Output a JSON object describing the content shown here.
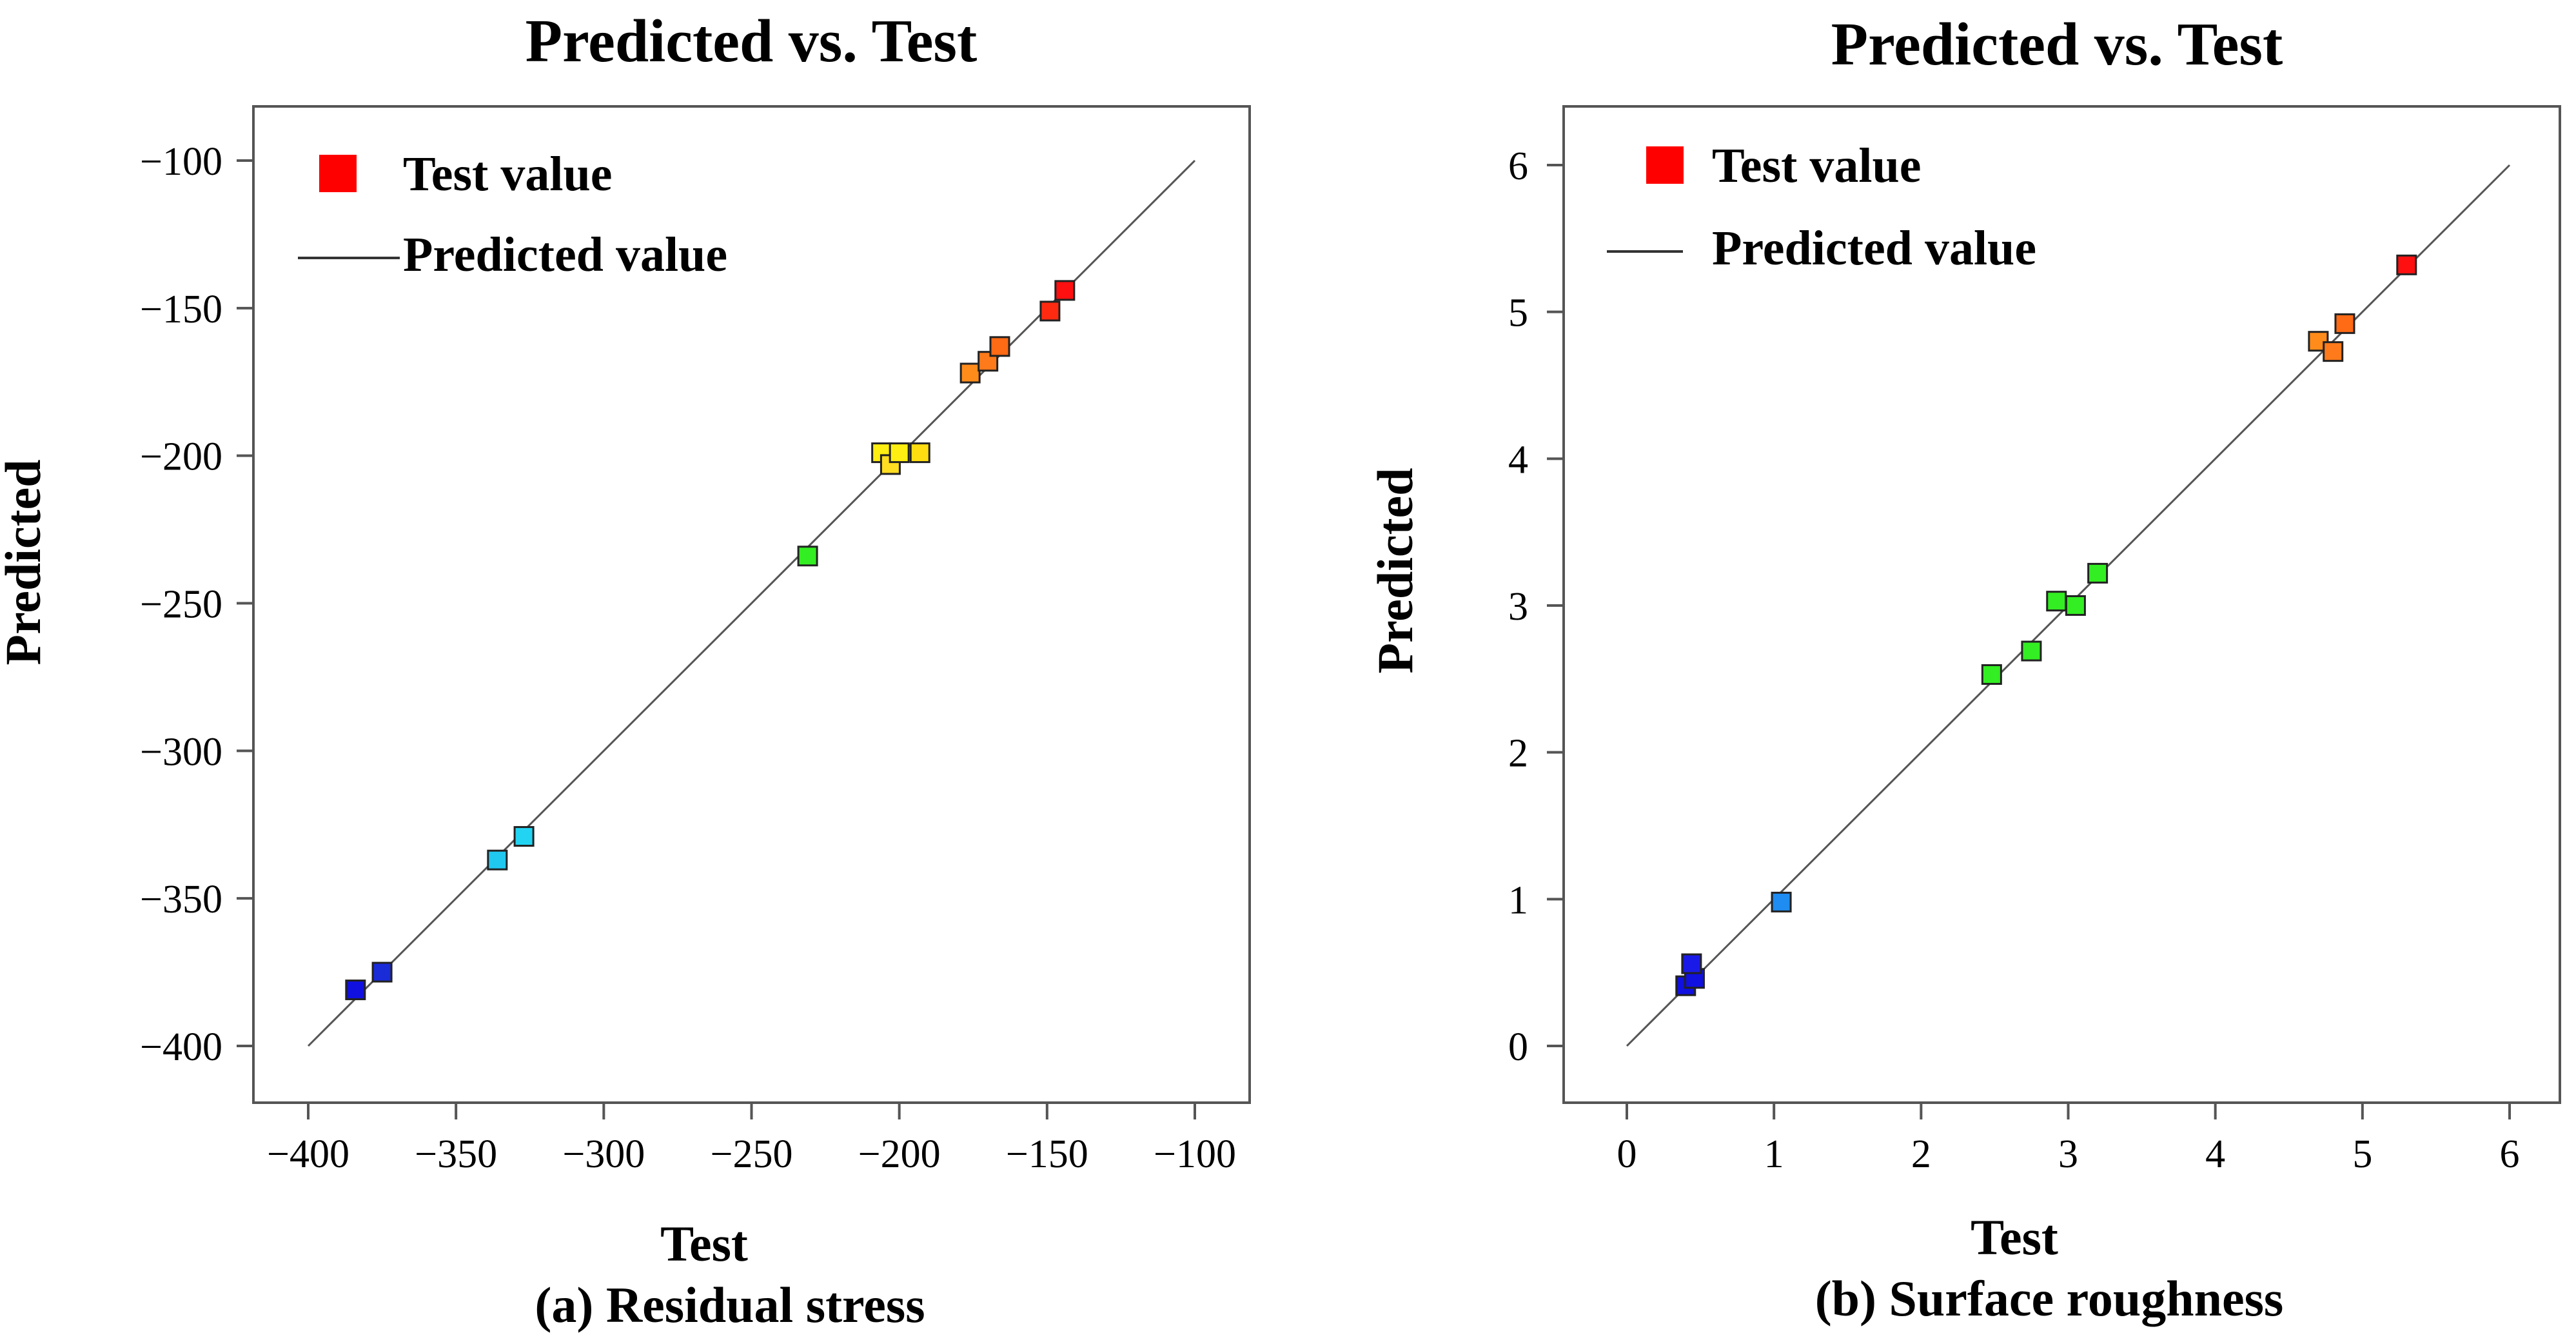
{
  "chart_data": [
    {
      "type": "scatter",
      "title": "Predicted vs. Test",
      "xlabel": "Test",
      "ylabel": "Predicted",
      "caption": "(a) Residual stress",
      "xlim": [
        -400,
        -100
      ],
      "ylim": [
        -400,
        -100
      ],
      "xticks": [
        -400,
        -350,
        -300,
        -250,
        -200,
        -150,
        -100
      ],
      "yticks": [
        -100,
        -150,
        -200,
        -250,
        -300,
        -350,
        -400
      ],
      "xtick_labels": [
        "−400",
        "−350",
        "−300",
        "−250",
        "−200",
        "−150",
        "−100"
      ],
      "ytick_labels": [
        "−100",
        "−150",
        "−200",
        "−250",
        "−300",
        "−350",
        "−400"
      ],
      "grid": false,
      "legend": {
        "placement": "top-left",
        "items": [
          {
            "label": "Test value",
            "kind": "marker",
            "color": "#ff0000"
          },
          {
            "label": "Predicted value",
            "kind": "line",
            "color": "#333333"
          }
        ]
      },
      "reference_line": {
        "x": [
          -400,
          -100
        ],
        "y": [
          -400,
          -100
        ]
      },
      "points": [
        {
          "x": -384,
          "y": -381,
          "color": "#1010e0"
        },
        {
          "x": -375,
          "y": -375,
          "color": "#1a2bd8"
        },
        {
          "x": -336,
          "y": -337,
          "color": "#20c8f0"
        },
        {
          "x": -327,
          "y": -329,
          "color": "#22d4f2"
        },
        {
          "x": -231,
          "y": -234,
          "color": "#33ee22"
        },
        {
          "x": -206,
          "y": -199,
          "color": "#ffee11"
        },
        {
          "x": -203,
          "y": -203,
          "color": "#ffdd22"
        },
        {
          "x": -200,
          "y": -199,
          "color": "#ffee11"
        },
        {
          "x": -193,
          "y": -199,
          "color": "#ffdd11"
        },
        {
          "x": -176,
          "y": -172,
          "color": "#ff8c1a"
        },
        {
          "x": -170,
          "y": -168,
          "color": "#ff7a1a"
        },
        {
          "x": -166,
          "y": -163,
          "color": "#ff6a14"
        },
        {
          "x": -149,
          "y": -151,
          "color": "#ff2a10"
        },
        {
          "x": -144,
          "y": -144,
          "color": "#ff1010"
        }
      ]
    },
    {
      "type": "scatter",
      "title": "Predicted vs. Test",
      "xlabel": "Test",
      "ylabel": "Predicted",
      "caption": "(b) Surface roughness",
      "xlim": [
        0,
        6
      ],
      "ylim": [
        0,
        6
      ],
      "xticks": [
        0,
        1,
        2,
        3,
        4,
        5,
        6
      ],
      "yticks": [
        0,
        1,
        2,
        3,
        4,
        5,
        6
      ],
      "xtick_labels": [
        "0",
        "1",
        "2",
        "3",
        "4",
        "5",
        "6"
      ],
      "ytick_labels": [
        "0",
        "1",
        "2",
        "3",
        "4",
        "5",
        "6"
      ],
      "grid": false,
      "legend": {
        "placement": "top-left",
        "items": [
          {
            "label": "Test value",
            "kind": "marker",
            "color": "#ff0000"
          },
          {
            "label": "Predicted value",
            "kind": "line",
            "color": "#333333"
          }
        ]
      },
      "reference_line": {
        "x": [
          0,
          6
        ],
        "y": [
          0,
          6
        ]
      },
      "points": [
        {
          "x": 0.4,
          "y": 0.41,
          "color": "#1010e0"
        },
        {
          "x": 0.46,
          "y": 0.46,
          "color": "#1010e0"
        },
        {
          "x": 0.44,
          "y": 0.56,
          "color": "#1a1ae8"
        },
        {
          "x": 1.05,
          "y": 0.98,
          "color": "#1e8cf0"
        },
        {
          "x": 2.48,
          "y": 2.53,
          "color": "#33ee22"
        },
        {
          "x": 2.75,
          "y": 2.69,
          "color": "#33ee22"
        },
        {
          "x": 2.92,
          "y": 3.03,
          "color": "#33ee22"
        },
        {
          "x": 3.05,
          "y": 3.0,
          "color": "#33ee22"
        },
        {
          "x": 3.2,
          "y": 3.22,
          "color": "#33ee22"
        },
        {
          "x": 4.7,
          "y": 4.8,
          "color": "#ff8c1a"
        },
        {
          "x": 4.8,
          "y": 4.73,
          "color": "#ff7a1a"
        },
        {
          "x": 4.88,
          "y": 4.92,
          "color": "#ff6a14"
        },
        {
          "x": 5.3,
          "y": 5.32,
          "color": "#ff1010"
        }
      ]
    }
  ]
}
